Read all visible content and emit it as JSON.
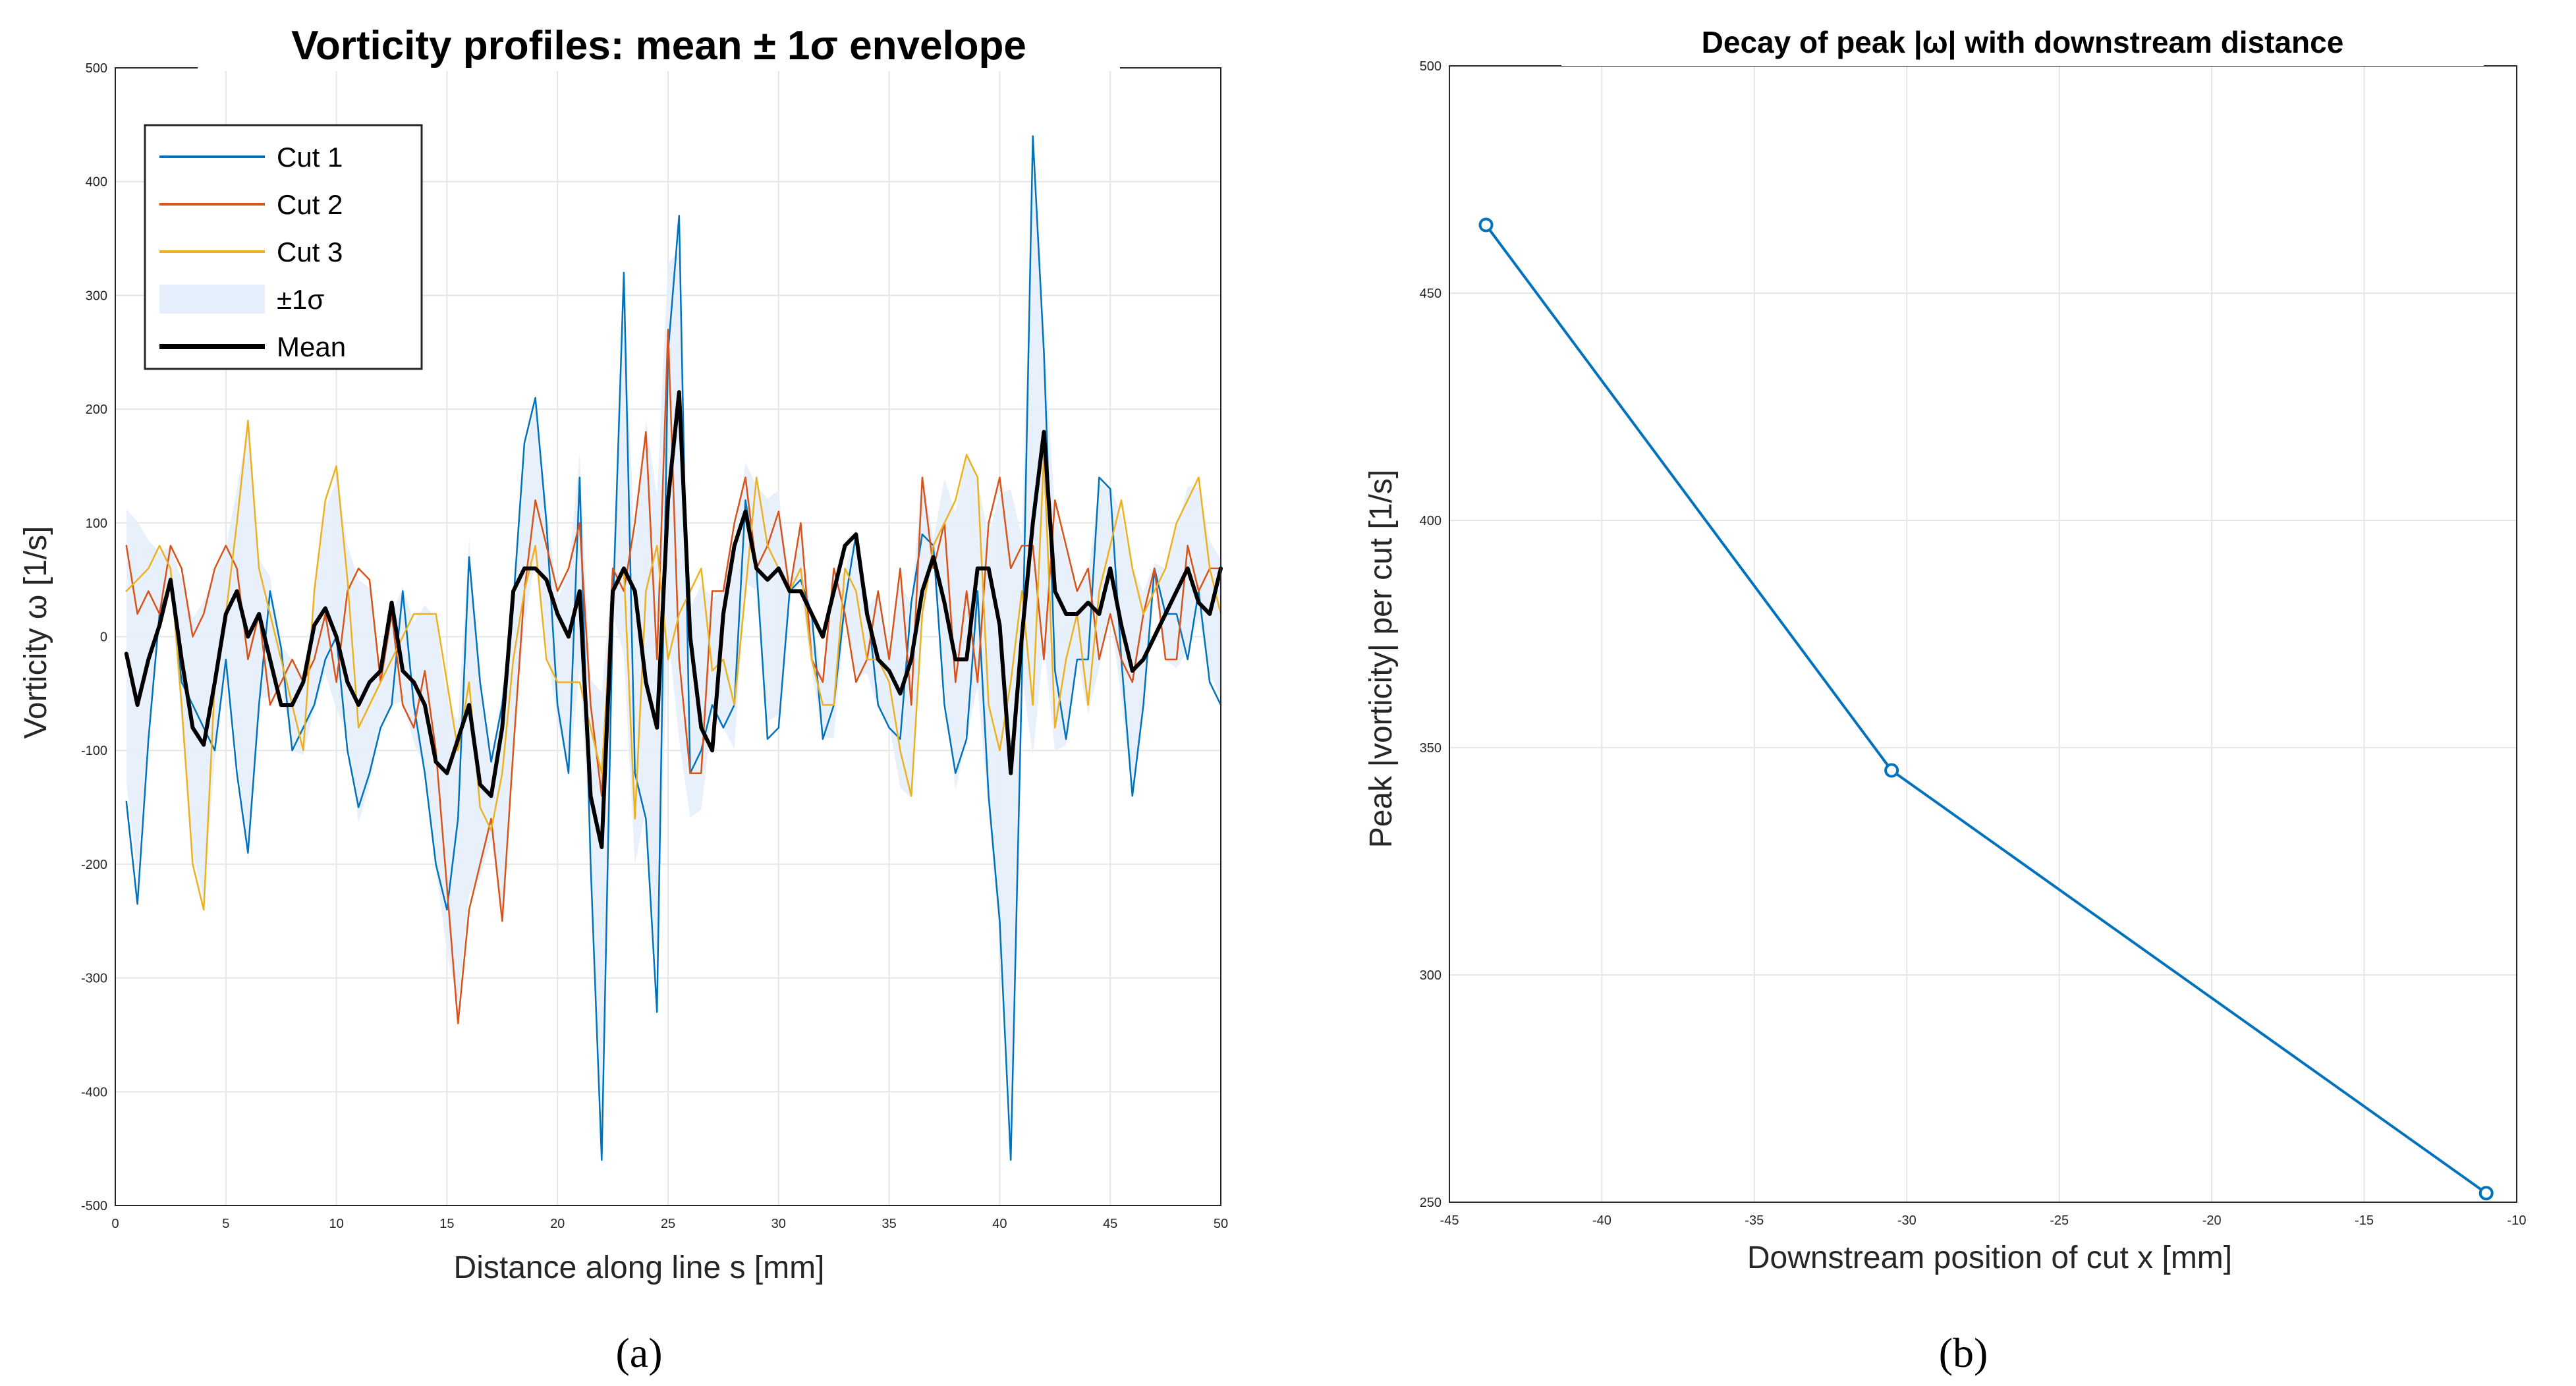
{
  "chart_data": [
    {
      "id": "a",
      "type": "line",
      "panel_label": "(a)",
      "title": "Vorticity profiles: mean ± 1σ envelope",
      "xlabel": "Distance along line s [mm]",
      "ylabel": "Vorticity ω [1/s]",
      "xlim": [
        0,
        50
      ],
      "ylim": [
        -500,
        500
      ],
      "xticks": [
        0,
        5,
        10,
        15,
        20,
        25,
        30,
        35,
        40,
        45,
        50
      ],
      "yticks": [
        -500,
        -400,
        -300,
        -200,
        -100,
        0,
        100,
        200,
        300,
        400,
        500
      ],
      "grid": true,
      "legend": {
        "position": "top-left",
        "entries": [
          {
            "label": "Cut 1",
            "color": "#0072BD",
            "kind": "line"
          },
          {
            "label": "Cut 2",
            "color": "#D95319",
            "kind": "line"
          },
          {
            "label": "Cut 3",
            "color": "#EDB120",
            "kind": "line"
          },
          {
            "label": "±1σ",
            "color": "#E5EEFB",
            "kind": "patch"
          },
          {
            "label": "Mean",
            "color": "#000000",
            "kind": "thick-line"
          }
        ]
      },
      "envelope_color": "#E5EEFB",
      "x": [
        0.5,
        1.0,
        1.5,
        2.0,
        2.5,
        3.0,
        3.5,
        4.0,
        4.5,
        5.0,
        5.5,
        6.0,
        6.5,
        7.0,
        7.5,
        8.0,
        8.5,
        9.0,
        9.5,
        10.0,
        10.5,
        11.0,
        11.5,
        12.0,
        12.5,
        13.0,
        13.5,
        14.0,
        14.5,
        15.0,
        15.5,
        16.0,
        16.5,
        17.0,
        17.5,
        18.0,
        18.5,
        19.0,
        19.5,
        20.0,
        20.5,
        21.0,
        21.5,
        22.0,
        22.5,
        23.0,
        23.5,
        24.0,
        24.5,
        25.0,
        25.5,
        26.0,
        26.5,
        27.0,
        27.5,
        28.0,
        28.5,
        29.0,
        29.5,
        30.0,
        30.5,
        31.0,
        31.5,
        32.0,
        32.5,
        33.0,
        33.5,
        34.0,
        34.5,
        35.0,
        35.5,
        36.0,
        36.5,
        37.0,
        37.5,
        38.0,
        38.5,
        39.0,
        39.5,
        40.0,
        40.5,
        41.0,
        41.5,
        42.0,
        42.5,
        43.0,
        43.5,
        44.0,
        44.5,
        45.0,
        45.5,
        46.0,
        46.5,
        47.0,
        47.5,
        48.0,
        48.5,
        49.0,
        49.5,
        50.0
      ],
      "series": [
        {
          "name": "Cut 1",
          "color": "#0072BD",
          "width": 2.5,
          "values": [
            -145,
            -235,
            -90,
            20,
            50,
            -40,
            -60,
            -80,
            -100,
            -20,
            -120,
            -190,
            -60,
            40,
            -10,
            -100,
            -80,
            -60,
            -20,
            0,
            -100,
            -150,
            -120,
            -80,
            -60,
            40,
            -60,
            -120,
            -200,
            -240,
            -160,
            70,
            -40,
            -110,
            -60,
            30,
            170,
            210,
            100,
            -60,
            -120,
            140,
            -200,
            -460,
            20,
            320,
            -120,
            -160,
            -330,
            250,
            370,
            -120,
            -100,
            -60,
            -80,
            -60,
            120,
            60,
            -90,
            -80,
            40,
            50,
            20,
            -90,
            -60,
            30,
            90,
            30,
            -60,
            -80,
            -90,
            30,
            90,
            80,
            -60,
            -120,
            -90,
            40,
            -140,
            -250,
            -460,
            -40,
            440,
            250,
            -30,
            -90,
            -20,
            -20,
            140,
            130,
            -20,
            -140,
            -60,
            60,
            20,
            20,
            -20,
            40,
            -40,
            -60
          ]
        },
        {
          "name": "Cut 2",
          "color": "#D95319",
          "width": 2.5,
          "values": [
            80,
            20,
            40,
            20,
            80,
            60,
            0,
            20,
            60,
            80,
            60,
            -20,
            20,
            -60,
            -40,
            -20,
            -40,
            -20,
            20,
            -40,
            40,
            60,
            50,
            -40,
            20,
            -60,
            -80,
            -30,
            -100,
            -220,
            -340,
            -240,
            -200,
            -160,
            -250,
            -100,
            40,
            120,
            80,
            40,
            60,
            100,
            -60,
            -140,
            60,
            40,
            100,
            180,
            -20,
            270,
            -20,
            -120,
            -120,
            40,
            40,
            100,
            140,
            60,
            80,
            110,
            40,
            100,
            -20,
            -40,
            60,
            20,
            -40,
            -20,
            40,
            -20,
            60,
            -60,
            140,
            60,
            100,
            -40,
            40,
            -40,
            100,
            140,
            60,
            80,
            80,
            -20,
            120,
            80,
            40,
            60,
            -20,
            20,
            -20,
            -40,
            20,
            60,
            -20,
            -20,
            80,
            40,
            60,
            60
          ]
        },
        {
          "name": "Cut 3",
          "color": "#EDB120",
          "width": 2.5,
          "values": [
            40,
            50,
            60,
            80,
            60,
            -60,
            -200,
            -240,
            -40,
            20,
            100,
            190,
            60,
            20,
            -20,
            -60,
            -100,
            40,
            120,
            150,
            50,
            -80,
            -60,
            -40,
            -20,
            0,
            20,
            20,
            20,
            -40,
            -100,
            -40,
            -150,
            -170,
            -120,
            -20,
            40,
            80,
            -20,
            -40,
            -40,
            -40,
            -80,
            -120,
            40,
            60,
            -160,
            40,
            80,
            -20,
            20,
            40,
            60,
            -30,
            -20,
            -60,
            40,
            140,
            80,
            60,
            40,
            60,
            -20,
            -60,
            -60,
            60,
            40,
            -20,
            -20,
            -40,
            -100,
            -140,
            20,
            80,
            100,
            120,
            160,
            140,
            -60,
            -100,
            -40,
            40,
            -60,
            160,
            -80,
            -20,
            20,
            -60,
            40,
            80,
            120,
            60,
            20,
            40,
            60,
            100,
            120,
            140,
            60,
            20
          ]
        },
        {
          "name": "Mean",
          "color": "#000000",
          "width": 6,
          "values": [
            -15,
            -60,
            -20,
            10,
            50,
            -20,
            -80,
            -95,
            -40,
            20,
            40,
            0,
            20,
            -20,
            -60,
            -60,
            -40,
            10,
            25,
            0,
            -40,
            -60,
            -40,
            -30,
            30,
            -30,
            -40,
            -60,
            -110,
            -120,
            -90,
            -60,
            -130,
            -140,
            -80,
            40,
            60,
            60,
            50,
            20,
            0,
            40,
            -140,
            -185,
            40,
            60,
            40,
            -40,
            -80,
            120,
            215,
            0,
            -80,
            -100,
            20,
            80,
            110,
            60,
            50,
            60,
            40,
            40,
            20,
            0,
            40,
            80,
            90,
            20,
            -20,
            -30,
            -50,
            -20,
            40,
            70,
            30,
            -20,
            -20,
            60,
            60,
            10,
            -120,
            0,
            100,
            180,
            40,
            20,
            20,
            30,
            20,
            60,
            10,
            -30,
            -20,
            0,
            20,
            40,
            60,
            30,
            20,
            60
          ]
        }
      ]
    },
    {
      "id": "b",
      "type": "line",
      "panel_label": "(b)",
      "title": "Decay of peak |ω| with downstream distance",
      "xlabel": "Downstream position of cut x [mm]",
      "ylabel": "Peak |vorticity| per cut [1/s]",
      "xlim": [
        -45,
        -10
      ],
      "ylim": [
        250,
        500
      ],
      "xticks": [
        -45,
        -40,
        -35,
        -30,
        -25,
        -20,
        -15,
        -10
      ],
      "yticks": [
        250,
        300,
        350,
        400,
        450,
        500
      ],
      "grid": true,
      "marker": "circle",
      "series": [
        {
          "name": "Peak",
          "color": "#0072BD",
          "x": [
            -43.8,
            -30.5,
            -11.0
          ],
          "values": [
            465,
            345,
            252
          ]
        }
      ]
    }
  ]
}
